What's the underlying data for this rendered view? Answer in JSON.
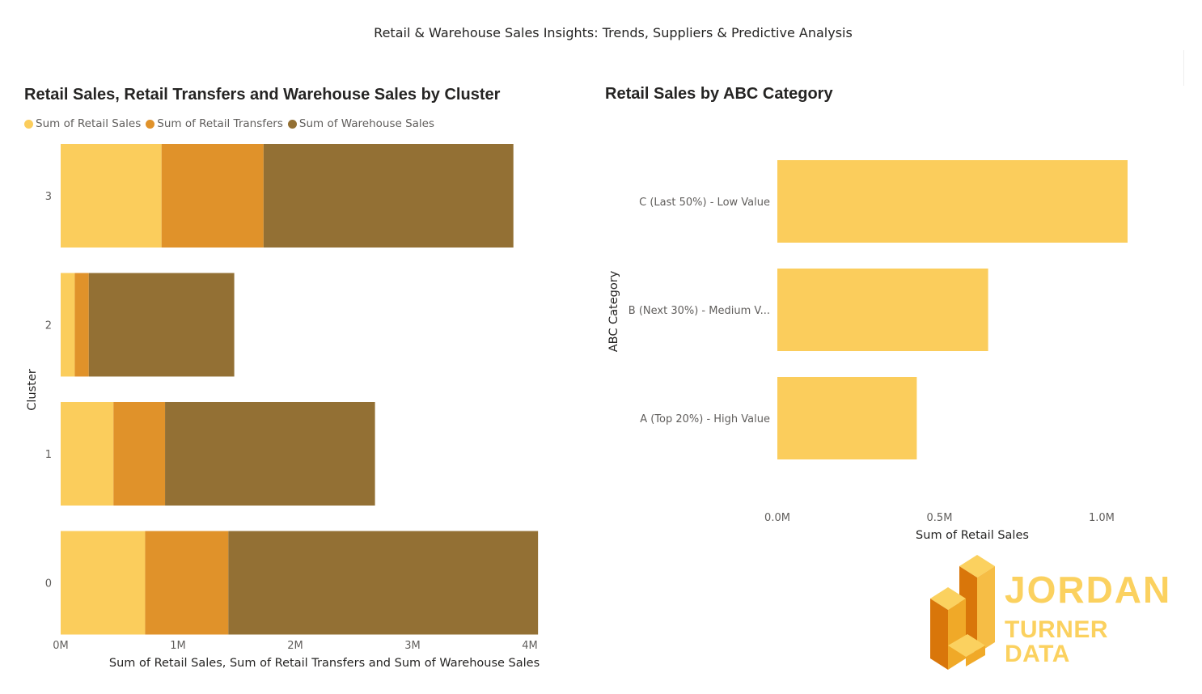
{
  "page": {
    "title": "Retail & Warehouse Sales Insights: Trends, Suppliers & Predictive Analysis"
  },
  "logo": {
    "line1": "JORDAN",
    "line2": "TURNER DATA",
    "colors": {
      "light": "#fbd15f",
      "mid": "#f0a928",
      "dark": "#d9760a"
    }
  },
  "chart_data": [
    {
      "type": "bar",
      "orientation": "horizontal",
      "stacked": true,
      "title": "Retail Sales, Retail Transfers and Warehouse Sales by Cluster",
      "xlabel": "Sum of Retail Sales, Sum of Retail Transfers and Sum of Warehouse Sales",
      "ylabel": "Cluster",
      "categories": [
        "3",
        "2",
        "1",
        "0"
      ],
      "xlim": [
        0,
        4000000
      ],
      "xticks": [
        {
          "value": 0,
          "label": "0M"
        },
        {
          "value": 1000000,
          "label": "1M"
        },
        {
          "value": 2000000,
          "label": "2M"
        },
        {
          "value": 3000000,
          "label": "3M"
        },
        {
          "value": 4000000,
          "label": "4M"
        }
      ],
      "legend_position": "top-left",
      "grid": false,
      "series": [
        {
          "name": "Sum of Retail Sales",
          "color": "#fbcd5c",
          "values": [
            860000,
            120000,
            450000,
            720000
          ]
        },
        {
          "name": "Sum of Retail Transfers",
          "color": "#e0922a",
          "values": [
            870000,
            120000,
            440000,
            710000
          ]
        },
        {
          "name": "Sum of Warehouse Sales",
          "color": "#937034",
          "values": [
            2130000,
            1240000,
            1790000,
            2640000
          ]
        }
      ]
    },
    {
      "type": "bar",
      "orientation": "horizontal",
      "title": "Retail Sales by ABC Category",
      "xlabel": "Sum of Retail Sales",
      "ylabel": "ABC Category",
      "categories": [
        "C (Last 50%) - Low Value",
        "B (Next 30%) - Medium V...",
        "A (Top 20%) - High Value"
      ],
      "xlim": [
        0,
        1080000
      ],
      "xticks": [
        {
          "value": 0,
          "label": "0.0M"
        },
        {
          "value": 500000,
          "label": "0.5M"
        },
        {
          "value": 1000000,
          "label": "1.0M"
        }
      ],
      "grid": false,
      "series": [
        {
          "name": "Sum of Retail Sales",
          "color": "#fbcd5c",
          "values": [
            1080000,
            650000,
            430000
          ]
        }
      ]
    }
  ]
}
